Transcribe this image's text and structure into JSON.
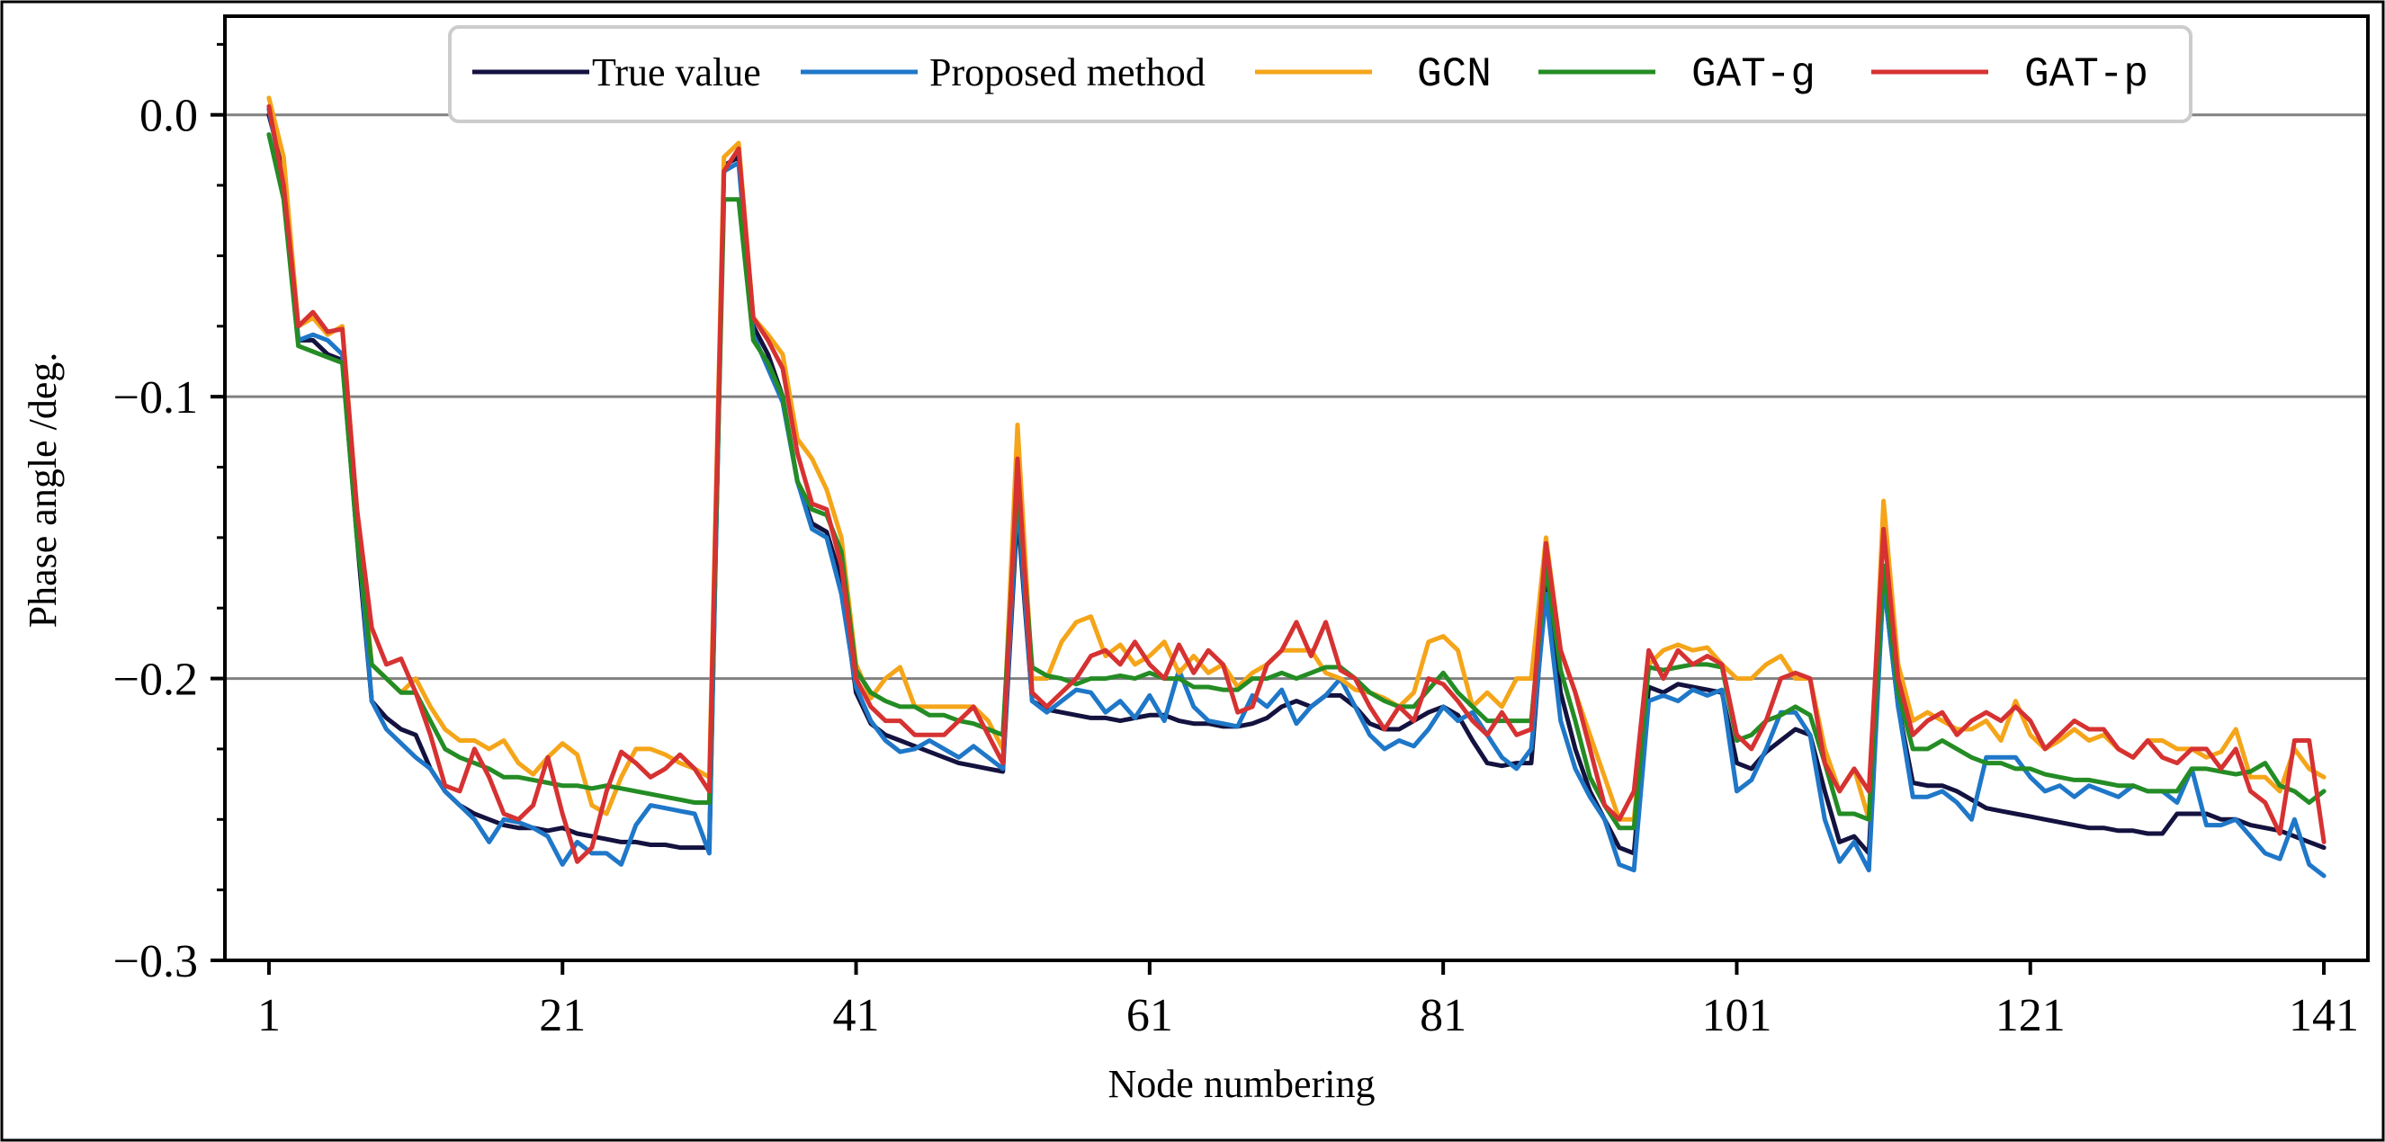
{
  "chart_data": {
    "type": "line",
    "xlabel": "Node numbering",
    "ylabel": "Phase angle /deg.",
    "xlim": [
      -2,
      144
    ],
    "ylim": [
      -0.3,
      0.035
    ],
    "xticks": [
      1,
      21,
      41,
      61,
      81,
      101,
      121,
      141
    ],
    "yticks": [
      0.0,
      -0.1,
      -0.2,
      -0.3
    ],
    "ytick_labels": [
      "0.0",
      "−0.1",
      "−0.2",
      "−0.3"
    ],
    "minor_yticks": [
      0.025,
      -0.025,
      -0.05,
      -0.075,
      -0.125,
      -0.15,
      -0.175,
      -0.225,
      -0.25,
      -0.275
    ],
    "gridlines_y": [
      0.0,
      -0.1,
      -0.2
    ],
    "legend_position": "top-center",
    "x": [
      1,
      2,
      3,
      4,
      5,
      6,
      7,
      8,
      9,
      10,
      11,
      12,
      13,
      14,
      15,
      16,
      17,
      18,
      19,
      20,
      21,
      22,
      23,
      24,
      25,
      26,
      27,
      28,
      29,
      30,
      31,
      32,
      33,
      34,
      35,
      36,
      37,
      38,
      39,
      40,
      41,
      42,
      43,
      44,
      45,
      46,
      47,
      48,
      49,
      50,
      51,
      52,
      53,
      54,
      55,
      56,
      57,
      58,
      59,
      60,
      61,
      62,
      63,
      64,
      65,
      66,
      67,
      68,
      69,
      70,
      71,
      72,
      73,
      74,
      75,
      76,
      77,
      78,
      79,
      80,
      81,
      82,
      83,
      84,
      85,
      86,
      87,
      88,
      89,
      90,
      91,
      92,
      93,
      94,
      95,
      96,
      97,
      98,
      99,
      100,
      101,
      102,
      103,
      104,
      105,
      106,
      107,
      108,
      109,
      110,
      111,
      112,
      113,
      114,
      115,
      116,
      117,
      118,
      119,
      120,
      121,
      122,
      123,
      124,
      125,
      126,
      127,
      128,
      129,
      130,
      131,
      132,
      133,
      134,
      135,
      136,
      137,
      138,
      139,
      140,
      141
    ],
    "series": [
      {
        "name": "True value",
        "color": "#14123f",
        "values": [
          0.0,
          -0.02,
          -0.08,
          -0.08,
          -0.085,
          -0.087,
          -0.15,
          -0.208,
          -0.214,
          -0.218,
          -0.22,
          -0.232,
          -0.24,
          -0.245,
          -0.248,
          -0.25,
          -0.252,
          -0.253,
          -0.253,
          -0.254,
          -0.253,
          -0.255,
          -0.256,
          -0.257,
          -0.258,
          -0.258,
          -0.259,
          -0.259,
          -0.26,
          -0.26,
          -0.26,
          -0.018,
          -0.015,
          -0.075,
          -0.085,
          -0.1,
          -0.13,
          -0.145,
          -0.148,
          -0.165,
          -0.205,
          -0.216,
          -0.22,
          -0.222,
          -0.224,
          -0.226,
          -0.228,
          -0.23,
          -0.231,
          -0.232,
          -0.233,
          -0.14,
          -0.208,
          -0.211,
          -0.212,
          -0.213,
          -0.214,
          -0.214,
          -0.215,
          -0.214,
          -0.213,
          -0.213,
          -0.215,
          -0.216,
          -0.216,
          -0.217,
          -0.217,
          -0.216,
          -0.214,
          -0.21,
          -0.208,
          -0.21,
          -0.206,
          -0.206,
          -0.21,
          -0.216,
          -0.218,
          -0.218,
          -0.215,
          -0.212,
          -0.21,
          -0.213,
          -0.222,
          -0.23,
          -0.231,
          -0.23,
          -0.23,
          -0.165,
          -0.205,
          -0.225,
          -0.24,
          -0.25,
          -0.26,
          -0.262,
          -0.203,
          -0.205,
          -0.202,
          -0.203,
          -0.204,
          -0.205,
          -0.23,
          -0.232,
          -0.226,
          -0.222,
          -0.218,
          -0.22,
          -0.24,
          -0.258,
          -0.256,
          -0.262,
          -0.165,
          -0.21,
          -0.237,
          -0.238,
          -0.238,
          -0.24,
          -0.243,
          -0.246,
          -0.247,
          -0.248,
          -0.249,
          -0.25,
          -0.251,
          -0.252,
          -0.253,
          -0.253,
          -0.254,
          -0.254,
          -0.255,
          -0.255,
          -0.248,
          -0.248,
          -0.248,
          -0.25,
          -0.25,
          -0.252,
          -0.253,
          -0.254,
          -0.256,
          -0.258,
          -0.26
        ]
      },
      {
        "name": "Proposed method",
        "color": "#1f77c8",
        "values": [
          0.002,
          -0.025,
          -0.08,
          -0.078,
          -0.08,
          -0.085,
          -0.145,
          -0.208,
          -0.218,
          -0.223,
          -0.228,
          -0.232,
          -0.24,
          -0.245,
          -0.25,
          -0.258,
          -0.25,
          -0.251,
          -0.253,
          -0.256,
          -0.266,
          -0.258,
          -0.262,
          -0.262,
          -0.266,
          -0.252,
          -0.245,
          -0.246,
          -0.247,
          -0.248,
          -0.262,
          -0.02,
          -0.017,
          -0.078,
          -0.09,
          -0.102,
          -0.13,
          -0.147,
          -0.15,
          -0.17,
          -0.203,
          -0.215,
          -0.222,
          -0.226,
          -0.225,
          -0.222,
          -0.225,
          -0.228,
          -0.224,
          -0.228,
          -0.232,
          -0.135,
          -0.208,
          -0.212,
          -0.208,
          -0.204,
          -0.205,
          -0.212,
          -0.208,
          -0.214,
          -0.206,
          -0.215,
          -0.197,
          -0.21,
          -0.215,
          -0.216,
          -0.217,
          -0.206,
          -0.21,
          -0.204,
          -0.216,
          -0.21,
          -0.206,
          -0.2,
          -0.21,
          -0.22,
          -0.225,
          -0.222,
          -0.224,
          -0.218,
          -0.21,
          -0.215,
          -0.212,
          -0.22,
          -0.228,
          -0.232,
          -0.225,
          -0.17,
          -0.215,
          -0.232,
          -0.242,
          -0.25,
          -0.266,
          -0.268,
          -0.208,
          -0.206,
          -0.208,
          -0.204,
          -0.206,
          -0.204,
          -0.24,
          -0.236,
          -0.225,
          -0.212,
          -0.212,
          -0.22,
          -0.25,
          -0.265,
          -0.258,
          -0.268,
          -0.165,
          -0.21,
          -0.242,
          -0.242,
          -0.24,
          -0.244,
          -0.25,
          -0.228,
          -0.228,
          -0.228,
          -0.235,
          -0.24,
          -0.238,
          -0.242,
          -0.238,
          -0.24,
          -0.242,
          -0.238,
          -0.24,
          -0.24,
          -0.244,
          -0.232,
          -0.252,
          -0.252,
          -0.25,
          -0.256,
          -0.262,
          -0.264,
          -0.25,
          -0.266,
          -0.27
        ]
      },
      {
        "name": "GCN",
        "color": "#f5a519",
        "values": [
          0.006,
          -0.015,
          -0.075,
          -0.072,
          -0.078,
          -0.075,
          -0.14,
          -0.195,
          -0.2,
          -0.205,
          -0.2,
          -0.21,
          -0.218,
          -0.222,
          -0.222,
          -0.225,
          -0.222,
          -0.23,
          -0.234,
          -0.228,
          -0.223,
          -0.227,
          -0.245,
          -0.248,
          -0.235,
          -0.225,
          -0.225,
          -0.227,
          -0.23,
          -0.232,
          -0.235,
          -0.015,
          -0.01,
          -0.072,
          -0.078,
          -0.085,
          -0.115,
          -0.122,
          -0.133,
          -0.15,
          -0.195,
          -0.207,
          -0.2,
          -0.196,
          -0.21,
          -0.21,
          -0.21,
          -0.21,
          -0.21,
          -0.215,
          -0.225,
          -0.11,
          -0.2,
          -0.2,
          -0.187,
          -0.18,
          -0.178,
          -0.192,
          -0.188,
          -0.195,
          -0.192,
          -0.187,
          -0.198,
          -0.192,
          -0.198,
          -0.195,
          -0.203,
          -0.198,
          -0.195,
          -0.19,
          -0.19,
          -0.19,
          -0.198,
          -0.2,
          -0.204,
          -0.205,
          -0.207,
          -0.21,
          -0.205,
          -0.187,
          -0.185,
          -0.19,
          -0.21,
          -0.205,
          -0.21,
          -0.2,
          -0.2,
          -0.15,
          -0.19,
          -0.205,
          -0.22,
          -0.235,
          -0.25,
          -0.25,
          -0.195,
          -0.19,
          -0.188,
          -0.19,
          -0.189,
          -0.195,
          -0.2,
          -0.2,
          -0.195,
          -0.192,
          -0.2,
          -0.2,
          -0.225,
          -0.24,
          -0.232,
          -0.25,
          -0.137,
          -0.195,
          -0.215,
          -0.212,
          -0.215,
          -0.218,
          -0.218,
          -0.215,
          -0.222,
          -0.208,
          -0.22,
          -0.225,
          -0.222,
          -0.218,
          -0.222,
          -0.22,
          -0.225,
          -0.228,
          -0.222,
          -0.222,
          -0.225,
          -0.225,
          -0.228,
          -0.226,
          -0.218,
          -0.235,
          -0.235,
          -0.24,
          -0.225,
          -0.232,
          -0.235
        ]
      },
      {
        "name": "GAT-g",
        "color": "#248c24",
        "values": [
          -0.007,
          -0.03,
          -0.082,
          -0.084,
          -0.086,
          -0.088,
          -0.15,
          -0.195,
          -0.2,
          -0.205,
          -0.205,
          -0.215,
          -0.225,
          -0.228,
          -0.23,
          -0.232,
          -0.235,
          -0.235,
          -0.236,
          -0.237,
          -0.238,
          -0.238,
          -0.239,
          -0.238,
          -0.239,
          -0.24,
          -0.241,
          -0.242,
          -0.243,
          -0.244,
          -0.244,
          -0.03,
          -0.03,
          -0.08,
          -0.088,
          -0.1,
          -0.13,
          -0.14,
          -0.142,
          -0.155,
          -0.197,
          -0.205,
          -0.208,
          -0.21,
          -0.21,
          -0.213,
          -0.213,
          -0.215,
          -0.216,
          -0.218,
          -0.22,
          -0.13,
          -0.196,
          -0.199,
          -0.2,
          -0.202,
          -0.2,
          -0.2,
          -0.199,
          -0.2,
          -0.198,
          -0.2,
          -0.2,
          -0.203,
          -0.203,
          -0.204,
          -0.204,
          -0.2,
          -0.2,
          -0.198,
          -0.2,
          -0.198,
          -0.196,
          -0.196,
          -0.2,
          -0.205,
          -0.208,
          -0.21,
          -0.21,
          -0.204,
          -0.198,
          -0.205,
          -0.21,
          -0.215,
          -0.215,
          -0.215,
          -0.215,
          -0.16,
          -0.197,
          -0.215,
          -0.235,
          -0.245,
          -0.253,
          -0.253,
          -0.196,
          -0.197,
          -0.196,
          -0.195,
          -0.195,
          -0.196,
          -0.222,
          -0.22,
          -0.215,
          -0.213,
          -0.21,
          -0.213,
          -0.23,
          -0.248,
          -0.248,
          -0.25,
          -0.16,
          -0.205,
          -0.225,
          -0.225,
          -0.222,
          -0.225,
          -0.228,
          -0.23,
          -0.23,
          -0.232,
          -0.232,
          -0.234,
          -0.235,
          -0.236,
          -0.236,
          -0.237,
          -0.238,
          -0.238,
          -0.24,
          -0.24,
          -0.24,
          -0.232,
          -0.232,
          -0.233,
          -0.234,
          -0.233,
          -0.23,
          -0.238,
          -0.24,
          -0.244,
          -0.24
        ]
      },
      {
        "name": "GAT-p",
        "color": "#d63232",
        "values": [
          0.003,
          -0.025,
          -0.075,
          -0.07,
          -0.077,
          -0.076,
          -0.14,
          -0.182,
          -0.195,
          -0.193,
          -0.205,
          -0.22,
          -0.238,
          -0.24,
          -0.225,
          -0.235,
          -0.248,
          -0.25,
          -0.245,
          -0.228,
          -0.248,
          -0.265,
          -0.26,
          -0.24,
          -0.226,
          -0.23,
          -0.235,
          -0.232,
          -0.227,
          -0.232,
          -0.24,
          -0.02,
          -0.012,
          -0.072,
          -0.08,
          -0.09,
          -0.12,
          -0.138,
          -0.14,
          -0.16,
          -0.2,
          -0.21,
          -0.215,
          -0.215,
          -0.22,
          -0.22,
          -0.22,
          -0.215,
          -0.21,
          -0.22,
          -0.23,
          -0.122,
          -0.205,
          -0.21,
          -0.205,
          -0.2,
          -0.192,
          -0.19,
          -0.195,
          -0.187,
          -0.195,
          -0.2,
          -0.188,
          -0.198,
          -0.19,
          -0.195,
          -0.212,
          -0.21,
          -0.195,
          -0.19,
          -0.18,
          -0.192,
          -0.18,
          -0.197,
          -0.2,
          -0.21,
          -0.218,
          -0.21,
          -0.215,
          -0.2,
          -0.202,
          -0.208,
          -0.215,
          -0.22,
          -0.212,
          -0.22,
          -0.218,
          -0.152,
          -0.19,
          -0.205,
          -0.225,
          -0.245,
          -0.25,
          -0.24,
          -0.19,
          -0.2,
          -0.19,
          -0.195,
          -0.192,
          -0.195,
          -0.22,
          -0.225,
          -0.215,
          -0.2,
          -0.198,
          -0.2,
          -0.23,
          -0.24,
          -0.232,
          -0.24,
          -0.147,
          -0.2,
          -0.22,
          -0.215,
          -0.212,
          -0.22,
          -0.215,
          -0.212,
          -0.215,
          -0.21,
          -0.215,
          -0.225,
          -0.22,
          -0.215,
          -0.218,
          -0.218,
          -0.225,
          -0.228,
          -0.222,
          -0.228,
          -0.23,
          -0.225,
          -0.225,
          -0.232,
          -0.225,
          -0.24,
          -0.244,
          -0.255,
          -0.222,
          -0.222,
          -0.258
        ]
      }
    ]
  }
}
